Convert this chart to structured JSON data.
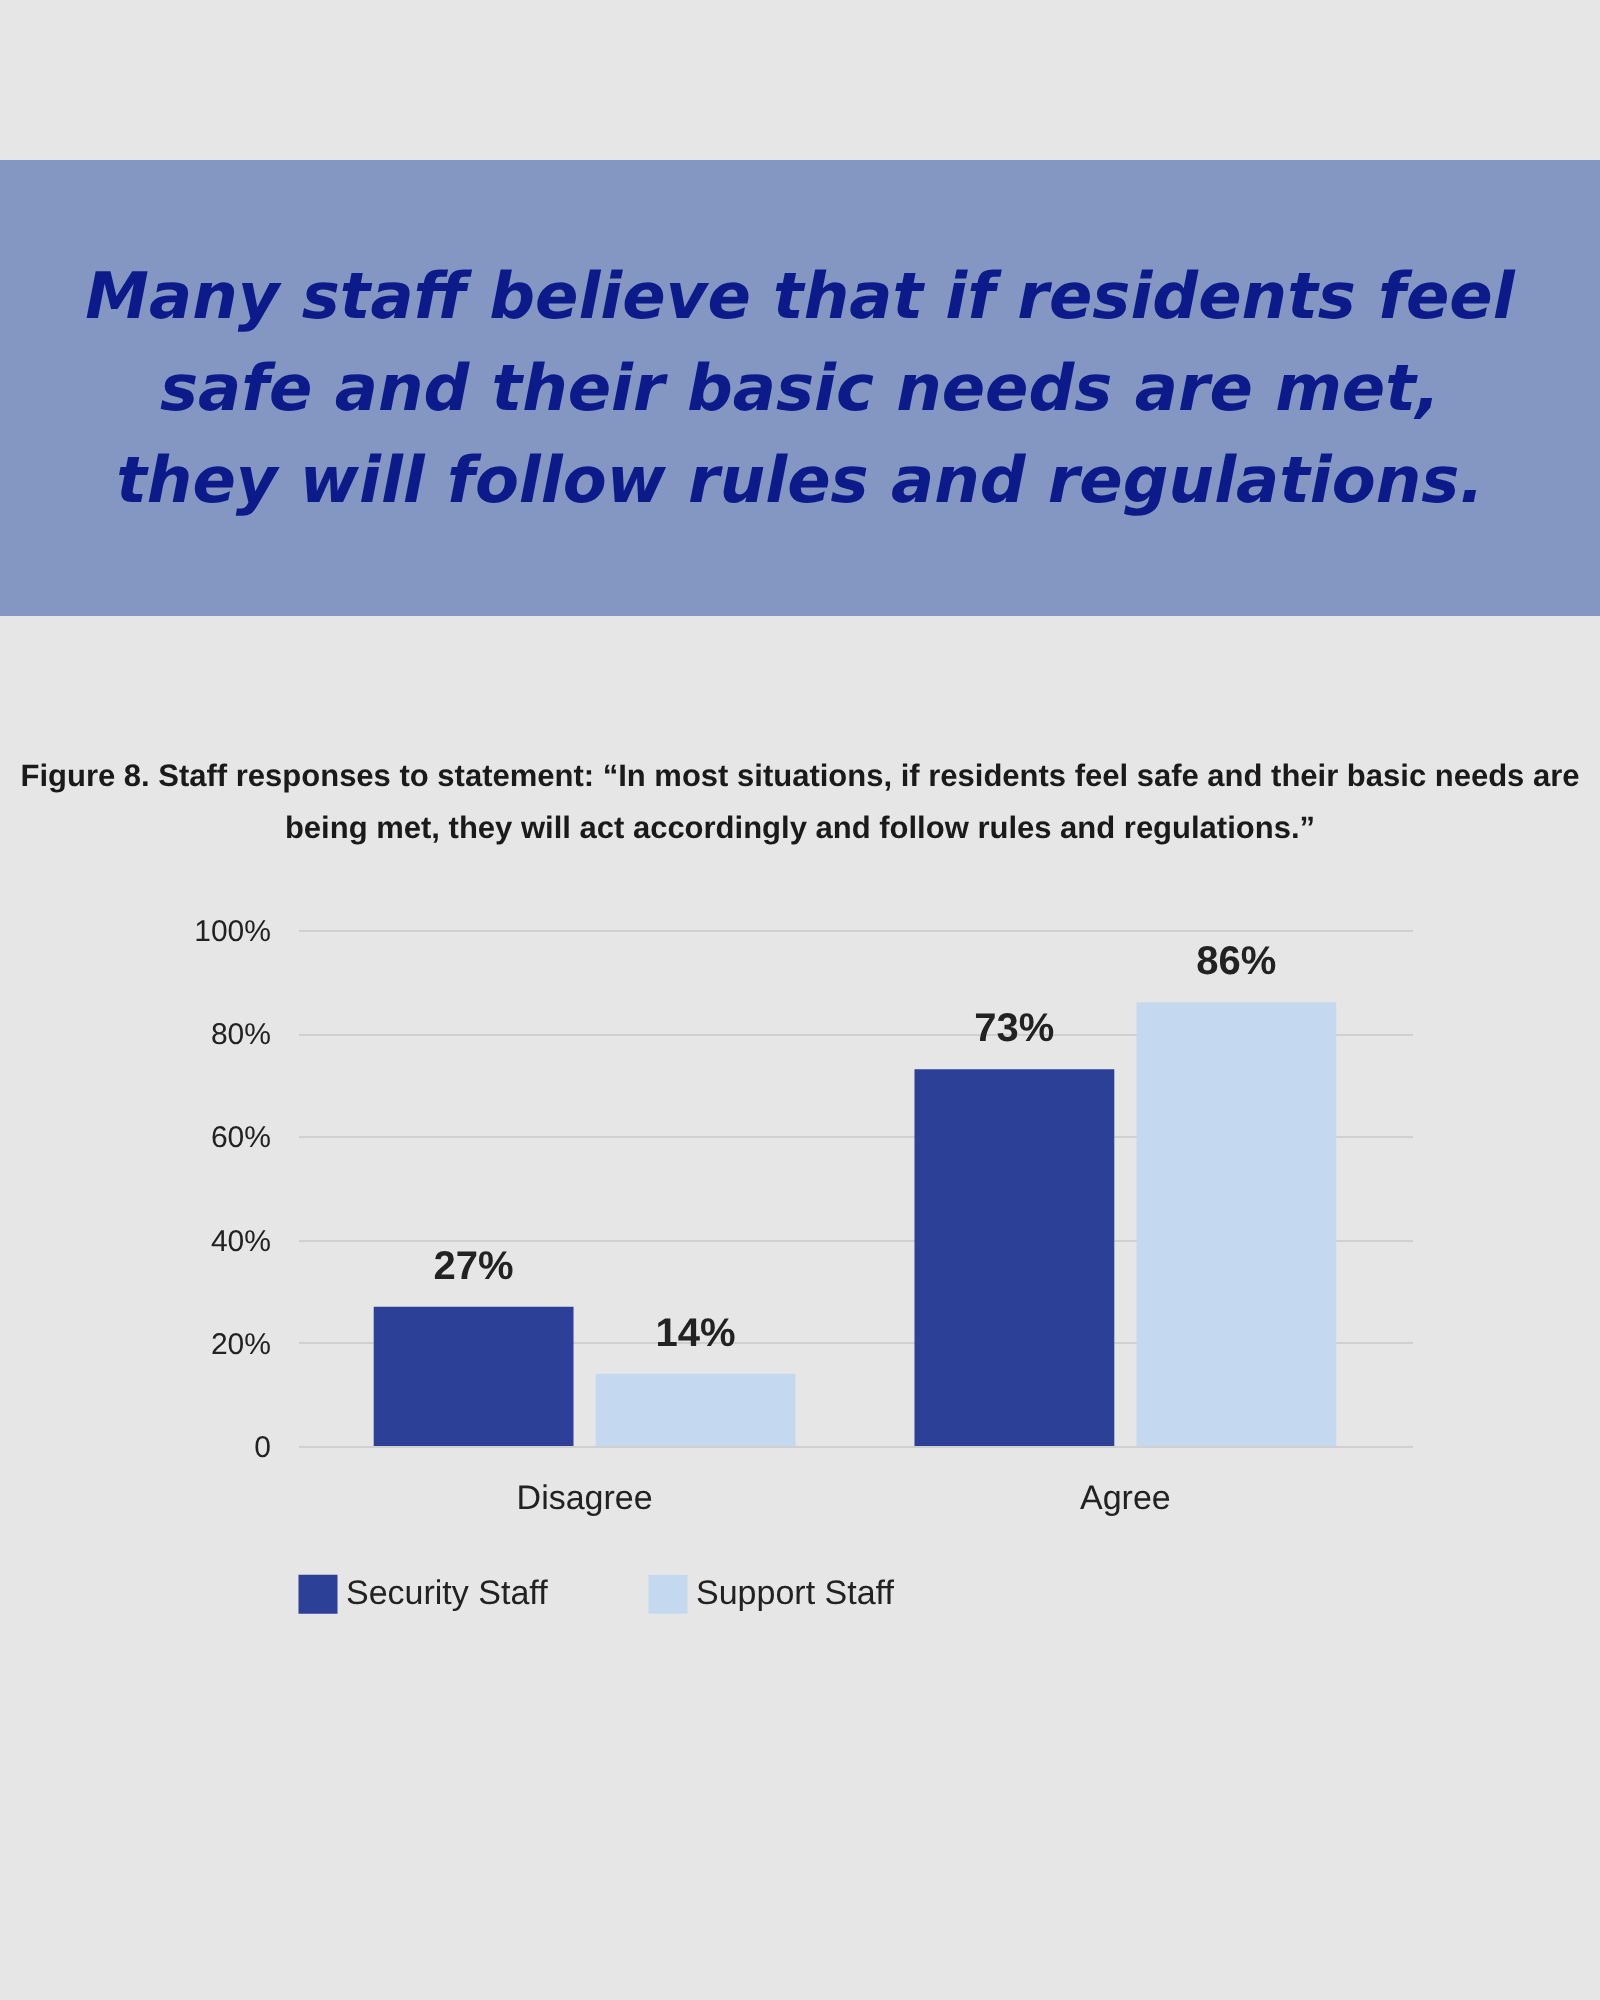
{
  "chart_data": {
    "type": "bar",
    "title": "Many staff believe that if residents feel safe and their basic needs are met, they will follow rules and regulations.",
    "subtitle": "Figure 8. Staff responses to statement: “In most situations, if residents feel safe and their basic needs are being met, they will act accordingly and follow rules and regulations.”",
    "categories": [
      "Disagree",
      "Agree"
    ],
    "series": [
      {
        "name": "Security Staff",
        "color": "#2b4096",
        "values": [
          27,
          73
        ],
        "value_labels": [
          "27%",
          "73%"
        ]
      },
      {
        "name": "Support Staff",
        "color": "#c4d9ef",
        "values": [
          14,
          86
        ],
        "value_labels": [
          "14%",
          "86%"
        ]
      }
    ],
    "ylim": [
      0,
      100
    ],
    "yticks": [
      {
        "value": 0,
        "label": "0"
      },
      {
        "value": 20,
        "label": "20%"
      },
      {
        "value": 40,
        "label": "40%"
      },
      {
        "value": 60,
        "label": "60%"
      },
      {
        "value": 80,
        "label": "80%"
      },
      {
        "value": 100,
        "label": "100%"
      }
    ],
    "grid": "y",
    "legend": "bottom"
  }
}
